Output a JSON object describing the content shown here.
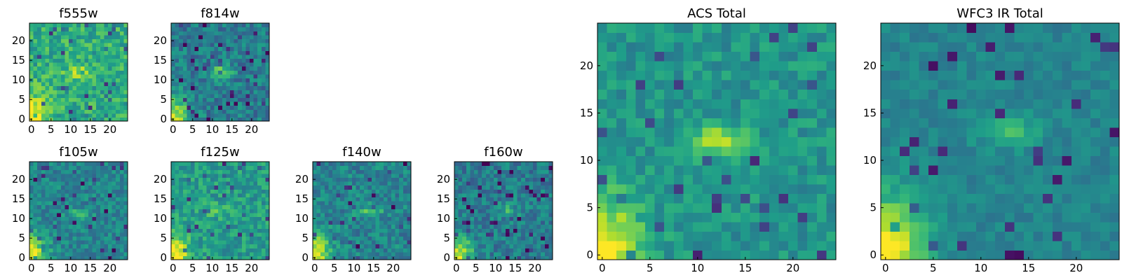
{
  "figure": {
    "colormap": "viridis",
    "background": "#ffffff"
  },
  "chart_data": [
    {
      "type": "heatmap",
      "title": "f555w",
      "xlim": [
        0,
        24
      ],
      "ylim": [
        0,
        24
      ],
      "xticks": [
        "0",
        "5",
        "10",
        "15",
        "20"
      ],
      "yticks": [
        "0",
        "5",
        "10",
        "15",
        "20"
      ],
      "hot": {
        "cx": 12,
        "cy": 12,
        "amp": 0.25
      },
      "corner": 0.45,
      "base": 0.62,
      "noise": 0.32,
      "seed": 11
    },
    {
      "type": "heatmap",
      "title": "f814w",
      "xlim": [
        0,
        24
      ],
      "ylim": [
        0,
        24
      ],
      "xticks": [
        "0",
        "5",
        "10",
        "15",
        "20"
      ],
      "yticks": [
        "0",
        "5",
        "10",
        "15",
        "20"
      ],
      "hot": {
        "cx": 12,
        "cy": 12,
        "amp": 0.35
      },
      "corner": 0.55,
      "base": 0.42,
      "noise": 0.3,
      "seed": 23
    },
    {
      "type": "heatmap",
      "title": "f105w",
      "xlim": [
        0,
        24
      ],
      "ylim": [
        0,
        24
      ],
      "xticks": [
        "0",
        "5",
        "10",
        "15",
        "20"
      ],
      "yticks": [
        "0",
        "5",
        "10",
        "15",
        "20"
      ],
      "hot": {
        "cx": 12,
        "cy": 11,
        "amp": 0.2
      },
      "corner": 0.55,
      "base": 0.45,
      "noise": 0.26,
      "seed": 37
    },
    {
      "type": "heatmap",
      "title": "f125w",
      "xlim": [
        0,
        24
      ],
      "ylim": [
        0,
        24
      ],
      "xticks": [
        "0",
        "5",
        "10",
        "15",
        "20"
      ],
      "yticks": [
        "0",
        "5",
        "10",
        "15",
        "20"
      ],
      "hot": {
        "cx": 11,
        "cy": 12,
        "amp": 0.15
      },
      "corner": 0.5,
      "base": 0.55,
      "noise": 0.28,
      "seed": 41
    },
    {
      "type": "heatmap",
      "title": "f140w",
      "xlim": [
        0,
        24
      ],
      "ylim": [
        0,
        24
      ],
      "xticks": [
        "0",
        "5",
        "10",
        "15",
        "20"
      ],
      "yticks": [
        "0",
        "5",
        "10",
        "15",
        "20"
      ],
      "hot": {
        "cx": 14,
        "cy": 12,
        "amp": 0.25
      },
      "corner": 0.55,
      "base": 0.45,
      "noise": 0.28,
      "seed": 53
    },
    {
      "type": "heatmap",
      "title": "f160w",
      "xlim": [
        0,
        24
      ],
      "ylim": [
        0,
        24
      ],
      "xticks": [
        "0",
        "5",
        "10",
        "15",
        "20"
      ],
      "yticks": [
        "0",
        "5",
        "10",
        "15",
        "20"
      ],
      "hot": {
        "cx": 13,
        "cy": 12,
        "amp": 0.2
      },
      "corner": 0.55,
      "base": 0.42,
      "noise": 0.28,
      "seed": 67
    },
    {
      "type": "heatmap",
      "title": "ACS Total",
      "xlim": [
        0,
        24
      ],
      "ylim": [
        0,
        24
      ],
      "xticks": [
        "0",
        "5",
        "10",
        "15",
        "20"
      ],
      "yticks": [
        "0",
        "5",
        "10",
        "15",
        "20"
      ],
      "hot": {
        "cx": 12,
        "cy": 12,
        "amp": 0.38
      },
      "corner": 0.55,
      "base": 0.52,
      "noise": 0.22,
      "seed": 79
    },
    {
      "type": "heatmap",
      "title": "WFC3 IR Total",
      "xlim": [
        0,
        24
      ],
      "ylim": [
        0,
        24
      ],
      "xticks": [
        "0",
        "5",
        "10",
        "15",
        "20"
      ],
      "yticks": [
        "0",
        "5",
        "10",
        "15",
        "20"
      ],
      "hot": {
        "cx": 13,
        "cy": 13,
        "amp": 0.22
      },
      "corner": 0.6,
      "base": 0.45,
      "noise": 0.14,
      "seed": 97
    }
  ]
}
